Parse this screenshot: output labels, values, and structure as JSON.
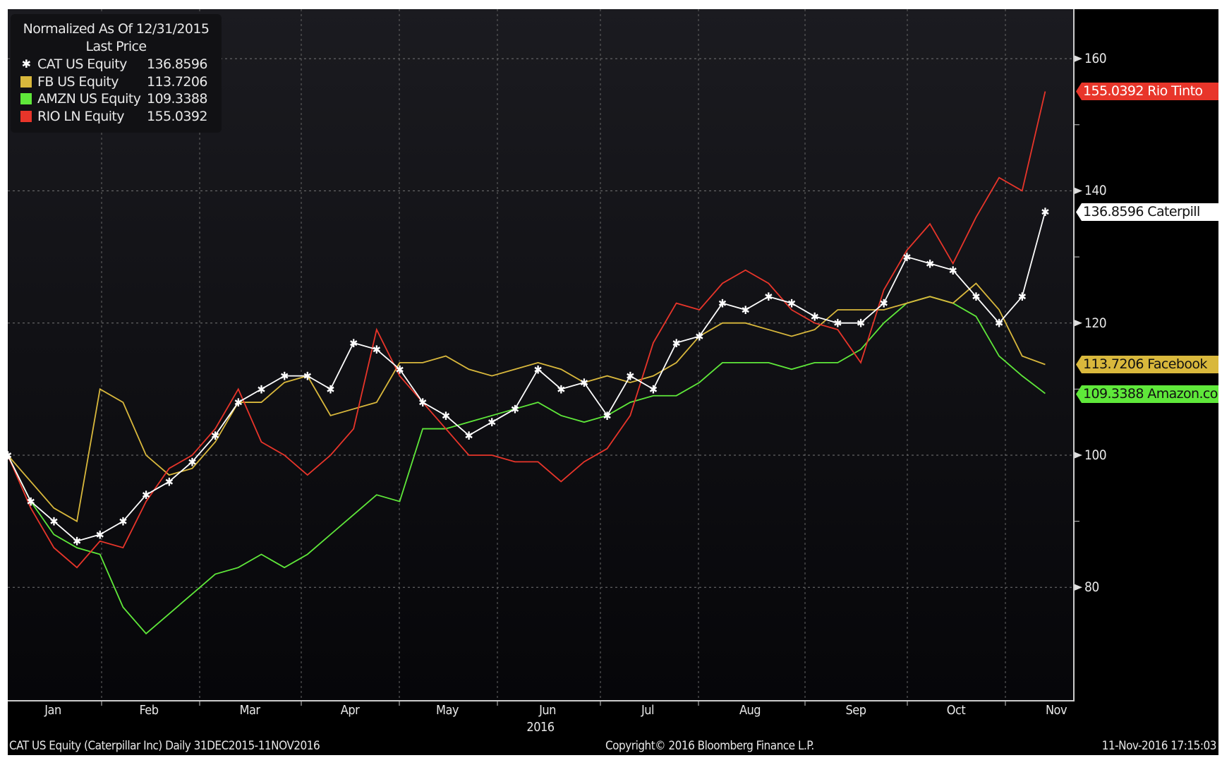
{
  "chart_data": {
    "type": "line",
    "title": "Normalized As Of 12/31/2015",
    "subtitle": "Last Price",
    "x_unit": "days since 31-Dec-2015",
    "x": [
      0,
      7,
      14,
      21,
      28,
      35,
      42,
      49,
      56,
      63,
      70,
      77,
      84,
      91,
      98,
      105,
      112,
      119,
      126,
      133,
      140,
      147,
      154,
      161,
      168,
      175,
      182,
      189,
      196,
      203,
      210,
      217,
      224,
      231,
      238,
      245,
      252,
      259,
      266,
      273,
      280,
      287,
      294,
      301,
      308,
      315
    ],
    "series": [
      {
        "name": "CAT US Equity",
        "last": "136.8596",
        "label": "136.8596 Caterpill",
        "color": "#ffffff",
        "marker": "*",
        "values": [
          100,
          93,
          90,
          87,
          88,
          90,
          94,
          96,
          99,
          103,
          108,
          110,
          112,
          112,
          110,
          117,
          116,
          113,
          108,
          106,
          103,
          105,
          107,
          113,
          110,
          111,
          106,
          112,
          110,
          117,
          118,
          123,
          122,
          124,
          123,
          121,
          120,
          120,
          123,
          130,
          129,
          128,
          124,
          120,
          124,
          136.86
        ]
      },
      {
        "name": "FB US Equity",
        "last": "113.7206",
        "label": "113.7206 Facebook",
        "color": "#d9b83c",
        "values": [
          100,
          96,
          92,
          90,
          110,
          108,
          100,
          97,
          98,
          102,
          108,
          108,
          111,
          112,
          106,
          107,
          108,
          114,
          114,
          115,
          113,
          112,
          113,
          114,
          113,
          111,
          112,
          111,
          112,
          114,
          118,
          120,
          120,
          119,
          118,
          119,
          122,
          122,
          122,
          123,
          124,
          123,
          126,
          122,
          115,
          113.72
        ]
      },
      {
        "name": "AMZN US Equity",
        "last": "109.3388",
        "label": "109.3388 Amazon.co",
        "color": "#5fe83a",
        "values": [
          100,
          93,
          88,
          86,
          85,
          77,
          73,
          76,
          79,
          82,
          83,
          85,
          83,
          85,
          88,
          91,
          94,
          93,
          104,
          104,
          105,
          106,
          107,
          108,
          106,
          105,
          106,
          108,
          109,
          109,
          111,
          114,
          114,
          114,
          113,
          114,
          114,
          116,
          120,
          123,
          124,
          123,
          121,
          115,
          112,
          109.34
        ]
      },
      {
        "name": "RIO LN Equity",
        "last": "155.0392",
        "label": "155.0392 Rio Tinto",
        "color": "#e8352a",
        "values": [
          100,
          92,
          86,
          83,
          87,
          86,
          93,
          98,
          100,
          104,
          110,
          102,
          100,
          97,
          100,
          104,
          119,
          112,
          108,
          104,
          100,
          100,
          99,
          99,
          96,
          99,
          101,
          106,
          117,
          123,
          122,
          126,
          128,
          126,
          122,
          120,
          119,
          114,
          125,
          131,
          135,
          129,
          136,
          142,
          140,
          155.04
        ]
      }
    ],
    "ylim": [
      63,
      167
    ],
    "yticks": [
      "160",
      "140",
      "120",
      "100",
      "80"
    ],
    "xticks": [
      "Jan",
      "Feb",
      "Mar",
      "Apr",
      "May",
      "Jun",
      "Jul",
      "Aug",
      "Sep",
      "Oct",
      "Nov"
    ],
    "year_label": "2016",
    "grid": true,
    "legend": "top-left"
  },
  "footer": {
    "left": "CAT US Equity (Caterpillar Inc)  Daily 31DEC2015-11NOV2016",
    "center": "Copyright© 2016 Bloomberg Finance L.P.",
    "right": "11-Nov-2016 17:15:03"
  }
}
